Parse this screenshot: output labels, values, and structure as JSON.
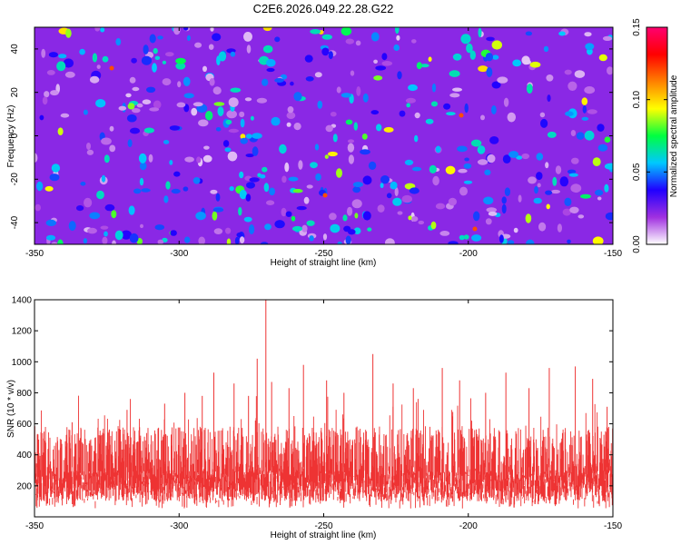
{
  "title": "C2E6.2026.049.22.28.G22",
  "colors": {
    "colorbar": [
      "#ffffff",
      "#a030e0",
      "#2000ff",
      "#00c8ff",
      "#00ff40",
      "#ffff00",
      "#ff8000",
      "#ff0000",
      "#ff0070"
    ],
    "snr_line": "#ee3333"
  },
  "chart_data": [
    {
      "type": "heatmap",
      "name": "spectrogram",
      "xlabel": "Height of straight line (km)",
      "ylabel": "Frequency (Hz)",
      "xlim": [
        -350,
        -150
      ],
      "ylim": [
        -50,
        50
      ],
      "x_ticks": [
        -350,
        -300,
        -250,
        -200,
        -150
      ],
      "x_tick_labels": [
        "-350",
        "-300",
        "-250",
        "-200",
        "-150"
      ],
      "y_ticks": [
        -40,
        -20,
        0,
        20,
        40
      ],
      "y_tick_labels": [
        "-40",
        "-20",
        "0",
        "20",
        "40"
      ],
      "colorbar": {
        "label": "Normalized spectral amplitude",
        "range": [
          0,
          0.15
        ],
        "ticks": [
          0,
          0.05,
          0.1,
          0.15
        ],
        "tick_labels": [
          "0.00",
          "0.05",
          "0.10",
          "0.15"
        ]
      },
      "description_values": {
        "background_level": 0.04,
        "peak_level": 0.09
      }
    },
    {
      "type": "line",
      "name": "snr",
      "xlabel": "Height of straight line (km)",
      "ylabel": "SNR (10 * v/v)",
      "xlim": [
        -350,
        -150
      ],
      "ylim": [
        0,
        1400
      ],
      "x_ticks": [
        -350,
        -300,
        -250,
        -200,
        -150
      ],
      "x_tick_labels": [
        "-350",
        "-300",
        "-250",
        "-200",
        "-150"
      ],
      "y_ticks": [
        200,
        400,
        600,
        800,
        1000,
        1200,
        1400
      ],
      "y_tick_labels": [
        "200",
        "400",
        "600",
        "800",
        "1000",
        "1200",
        "1400"
      ],
      "noise_band": {
        "min": 100,
        "max": 600,
        "mean": 320
      },
      "spikes": [
        {
          "x": -349,
          "y": 530
        },
        {
          "x": -337,
          "y": 610
        },
        {
          "x": -318,
          "y": 690
        },
        {
          "x": -305,
          "y": 730
        },
        {
          "x": -298,
          "y": 800
        },
        {
          "x": -292,
          "y": 780
        },
        {
          "x": -288,
          "y": 930
        },
        {
          "x": -281,
          "y": 860
        },
        {
          "x": -276,
          "y": 780
        },
        {
          "x": -273,
          "y": 1020
        },
        {
          "x": -270,
          "y": 1400
        },
        {
          "x": -268,
          "y": 870
        },
        {
          "x": -262,
          "y": 830
        },
        {
          "x": -257,
          "y": 980
        },
        {
          "x": -249,
          "y": 880
        },
        {
          "x": -243,
          "y": 800
        },
        {
          "x": -233,
          "y": 1050
        },
        {
          "x": -226,
          "y": 860
        },
        {
          "x": -219,
          "y": 830
        },
        {
          "x": -209,
          "y": 960
        },
        {
          "x": -203,
          "y": 880
        },
        {
          "x": -194,
          "y": 800
        },
        {
          "x": -187,
          "y": 930
        },
        {
          "x": -179,
          "y": 830
        },
        {
          "x": -172,
          "y": 960
        },
        {
          "x": -163,
          "y": 970
        },
        {
          "x": -157,
          "y": 890
        },
        {
          "x": -152,
          "y": 710
        }
      ]
    }
  ]
}
